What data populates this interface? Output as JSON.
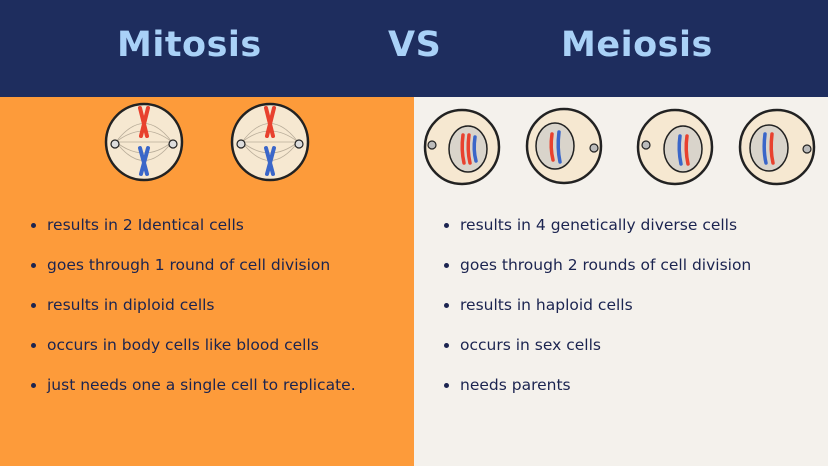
{
  "header": {
    "left_title": "Mitosis",
    "vs": "VS",
    "right_title": "Meiosis"
  },
  "mitosis": {
    "points": [
      "results in 2 Identical cells",
      "goes through 1 round of cell division",
      "results in diploid cells",
      "occurs in body cells like blood cells",
      "just needs one a single cell to replicate."
    ]
  },
  "meiosis": {
    "points": [
      "results in 4 genetically diverse cells",
      "goes through 2 rounds of cell division",
      "results in haploid cells",
      "occurs in sex cells",
      "needs parents"
    ]
  },
  "colors": {
    "header_bg": "#1e2d5e",
    "title": "#a9d1f7",
    "mitosis_bg": "#fd9b3a",
    "meiosis_bg": "#f4f1ec",
    "text": "#1b2450",
    "chromosome_red": "#e8412e",
    "chromosome_blue": "#3a66c9"
  }
}
